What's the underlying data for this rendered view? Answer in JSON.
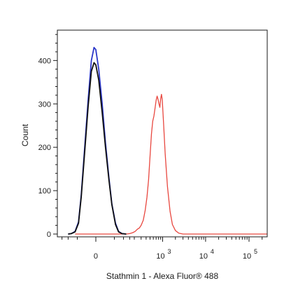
{
  "chart_data": {
    "type": "line",
    "title": "",
    "xlabel": "Stathmin 1 - Alexa Fluor® 488",
    "ylabel": "Count",
    "ylim": [
      0,
      470
    ],
    "yticks": [
      0,
      100,
      200,
      300,
      400
    ],
    "x_scale": "biexponential",
    "xticks": [
      {
        "value": 0,
        "label": "0",
        "exp": ""
      },
      {
        "value": 1000,
        "label": "10",
        "exp": "3"
      },
      {
        "value": 10000,
        "label": "10",
        "exp": "4"
      },
      {
        "value": 100000,
        "label": "10",
        "exp": "5"
      }
    ],
    "grid": false,
    "legend": "none",
    "series": [
      {
        "color": "#e8473f",
        "points": [
          [
            -60,
            0
          ],
          [
            60,
            0
          ],
          [
            120,
            0
          ],
          [
            150,
            1
          ],
          [
            180,
            3
          ],
          [
            210,
            6
          ],
          [
            240,
            11
          ],
          [
            270,
            14
          ],
          [
            300,
            20
          ],
          [
            340,
            32
          ],
          [
            380,
            55
          ],
          [
            420,
            85
          ],
          [
            460,
            125
          ],
          [
            500,
            180
          ],
          [
            540,
            230
          ],
          [
            580,
            260
          ],
          [
            620,
            272
          ],
          [
            660,
            290
          ],
          [
            700,
            308
          ],
          [
            740,
            318
          ],
          [
            780,
            310
          ],
          [
            820,
            300
          ],
          [
            860,
            292
          ],
          [
            900,
            312
          ],
          [
            940,
            322
          ],
          [
            980,
            310
          ],
          [
            1050,
            258
          ],
          [
            1150,
            185
          ],
          [
            1300,
            110
          ],
          [
            1500,
            52
          ],
          [
            1700,
            22
          ],
          [
            2000,
            8
          ],
          [
            2400,
            2
          ],
          [
            3000,
            0
          ],
          [
            10000,
            0
          ],
          [
            100000,
            0
          ],
          [
            262000,
            0
          ]
        ]
      },
      {
        "color": "#2a36c9",
        "points": [
          [
            -100,
            0
          ],
          [
            -80,
            1
          ],
          [
            -60,
            6
          ],
          [
            -45,
            28
          ],
          [
            -35,
            90
          ],
          [
            -25,
            190
          ],
          [
            -15,
            310
          ],
          [
            -8,
            400
          ],
          [
            -3,
            430
          ],
          [
            0,
            425
          ],
          [
            5,
            380
          ],
          [
            12,
            300
          ],
          [
            20,
            210
          ],
          [
            30,
            130
          ],
          [
            40,
            70
          ],
          [
            55,
            25
          ],
          [
            70,
            6
          ],
          [
            90,
            1
          ],
          [
            120,
            0
          ]
        ]
      },
      {
        "color": "#111111",
        "points": [
          [
            -100,
            0
          ],
          [
            -80,
            1
          ],
          [
            -60,
            5
          ],
          [
            -45,
            25
          ],
          [
            -35,
            85
          ],
          [
            -25,
            180
          ],
          [
            -15,
            295
          ],
          [
            -8,
            375
          ],
          [
            -3,
            395
          ],
          [
            0,
            390
          ],
          [
            5,
            355
          ],
          [
            12,
            280
          ],
          [
            20,
            200
          ],
          [
            30,
            125
          ],
          [
            40,
            68
          ],
          [
            55,
            22
          ],
          [
            70,
            5
          ],
          [
            90,
            1
          ],
          [
            120,
            0
          ]
        ]
      }
    ]
  }
}
